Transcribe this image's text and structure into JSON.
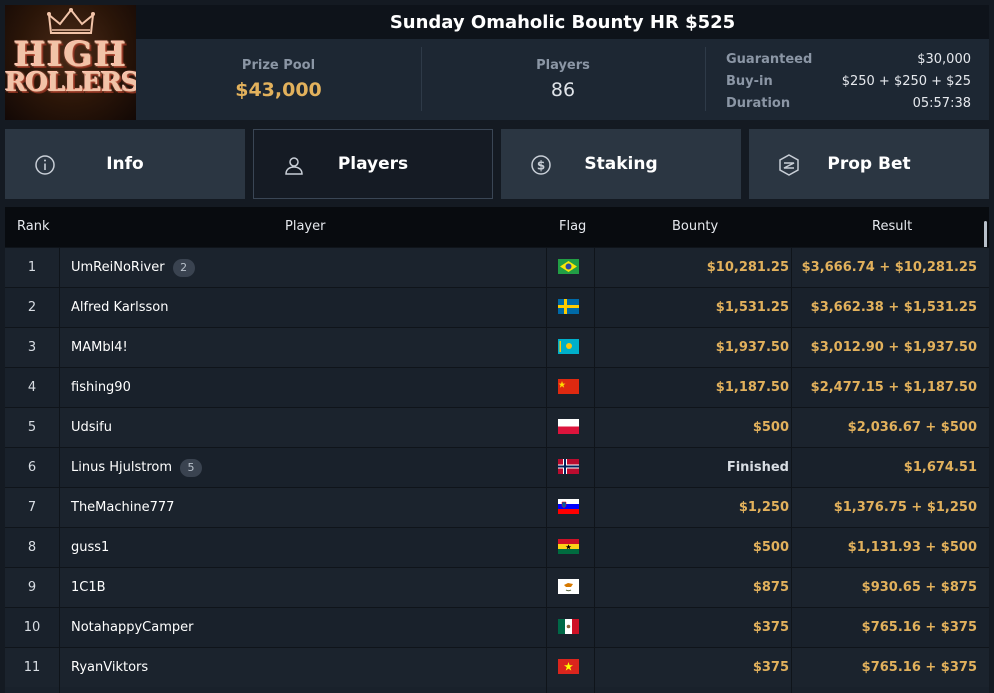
{
  "header": {
    "title": "Sunday Omaholic Bounty HR $525",
    "logo": {
      "line1": "HIGH",
      "line2": "ROLLERS"
    },
    "prize_pool_label": "Prize Pool",
    "prize_pool_value": "$43,000",
    "players_label": "Players",
    "players_value": "86",
    "details": [
      {
        "label": "Guaranteed",
        "value": "$30,000"
      },
      {
        "label": "Buy-in",
        "value": "$250 + $250 + $25"
      },
      {
        "label": "Duration",
        "value": "05:57:38"
      }
    ]
  },
  "tabs": [
    {
      "label": "Info",
      "icon": "info-icon"
    },
    {
      "label": "Players",
      "icon": "user-icon",
      "active": true
    },
    {
      "label": "Staking",
      "icon": "dollar-coin-icon"
    },
    {
      "label": "Prop Bet",
      "icon": "lightning-shield-icon"
    }
  ],
  "table": {
    "columns": [
      "Rank",
      "Player",
      "Flag",
      "Bounty",
      "Result"
    ],
    "rows": [
      {
        "rank": "1",
        "player": "UmReiNoRiver",
        "badge": "2",
        "flag": "BR",
        "bounty": "$10,281.25",
        "result": "$3,666.74 + $10,281.25"
      },
      {
        "rank": "2",
        "player": "Alfred Karlsson",
        "badge": "",
        "flag": "SE",
        "bounty": "$1,531.25",
        "result": "$3,662.38 + $1,531.25"
      },
      {
        "rank": "3",
        "player": "MAMbl4!",
        "badge": "",
        "flag": "KZ",
        "bounty": "$1,937.50",
        "result": "$3,012.90 + $1,937.50"
      },
      {
        "rank": "4",
        "player": "fishing90",
        "badge": "",
        "flag": "CN",
        "bounty": "$1,187.50",
        "result": "$2,477.15 + $1,187.50"
      },
      {
        "rank": "5",
        "player": "Udsifu",
        "badge": "",
        "flag": "PL",
        "bounty": "$500",
        "result": "$2,036.67 + $500"
      },
      {
        "rank": "6",
        "player": "Linus Hjulstrom",
        "badge": "5",
        "flag": "NO",
        "bounty": "Finished",
        "result": "$1,674.51"
      },
      {
        "rank": "7",
        "player": "TheMachine777",
        "badge": "",
        "flag": "SI",
        "bounty": "$1,250",
        "result": "$1,376.75 + $1,250"
      },
      {
        "rank": "8",
        "player": "guss1",
        "badge": "",
        "flag": "GH",
        "bounty": "$500",
        "result": "$1,131.93 + $500"
      },
      {
        "rank": "9",
        "player": "1C1B",
        "badge": "",
        "flag": "CY",
        "bounty": "$875",
        "result": "$930.65 + $875"
      },
      {
        "rank": "10",
        "player": "NotahappyCamper",
        "badge": "",
        "flag": "MX",
        "bounty": "$375",
        "result": "$765.16 + $375"
      },
      {
        "rank": "11",
        "player": "RyanViktors",
        "badge": "",
        "flag": "VN",
        "bounty": "$375",
        "result": "$765.16 + $375"
      }
    ]
  },
  "colors": {
    "accent_gold": "#e2b15c",
    "bg": "#141a22",
    "tab_bg": "#2b3642",
    "tab_active_bg": "#151b24"
  }
}
